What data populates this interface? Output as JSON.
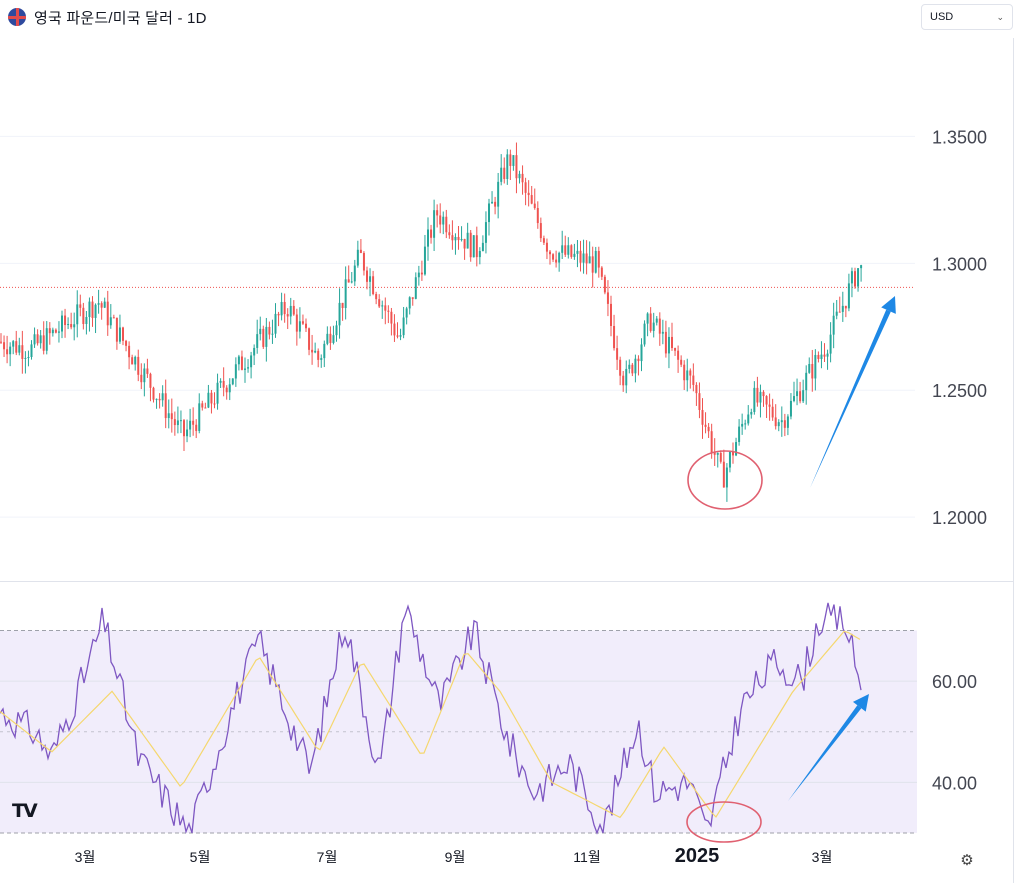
{
  "header": {
    "title": "영국 파운드/미국 달러 - 1D",
    "icon": "gbp-usd-flag-icon"
  },
  "currency_select": {
    "value": "USD"
  },
  "logo": {
    "text": "TV"
  },
  "colors": {
    "up": "#26a69a",
    "down": "#ef5350",
    "rsi_line": "#7e57c2",
    "rsi_ma": "#f5d76e",
    "rsi_band": "#f1edfb",
    "arrow": "#1e88e5",
    "circle": "#e06070"
  },
  "chart_data": [
    {
      "type": "candlestick",
      "title": "",
      "y_axis": {
        "ticks": [
          "1.3500",
          "1.3000",
          "1.2500",
          "1.2000"
        ],
        "range": [
          1.176,
          1.388
        ]
      },
      "x_axis": {
        "ticks": [
          "3월",
          "5월",
          "7월",
          "9월",
          "11월",
          "2025",
          "3월"
        ]
      },
      "current_price_line": 1.2905,
      "anchors": [
        {
          "x": "2024-01",
          "price": 1.272
        },
        {
          "x": "2024-02",
          "price": 1.266
        },
        {
          "x": "2024-03-08",
          "price": 1.285
        },
        {
          "x": "2024-04-22",
          "price": 1.232
        },
        {
          "x": "2024-06-12",
          "price": 1.283
        },
        {
          "x": "2024-06-27",
          "price": 1.262
        },
        {
          "x": "2024-07-17",
          "price": 1.303
        },
        {
          "x": "2024-08-05",
          "price": 1.27
        },
        {
          "x": "2024-08-23",
          "price": 1.32
        },
        {
          "x": "2024-09-11",
          "price": 1.305
        },
        {
          "x": "2024-09-26",
          "price": 1.342
        },
        {
          "x": "2024-10-15",
          "price": 1.305
        },
        {
          "x": "2024-11-06",
          "price": 1.3
        },
        {
          "x": "2024-11-22",
          "price": 1.253
        },
        {
          "x": "2024-12-06",
          "price": 1.278
        },
        {
          "x": "2024-12-30",
          "price": 1.252
        },
        {
          "x": "2025-01-13",
          "price": 1.215
        },
        {
          "x": "2025-01-27",
          "price": 1.247
        },
        {
          "x": "2025-02-10",
          "price": 1.238
        },
        {
          "x": "2025-03-03",
          "price": 1.268
        },
        {
          "x": "2025-03-18",
          "price": 1.298
        },
        {
          "x": "2025-03-31",
          "price": 1.292
        }
      ]
    },
    {
      "type": "line",
      "indicator": "RSI",
      "y_axis": {
        "ticks": [
          "60.00",
          "40.00"
        ],
        "range": [
          29,
          78
        ]
      },
      "bands": [
        30,
        50,
        70
      ],
      "series": [
        {
          "anchors": [
            [
              0,
              54
            ],
            [
              0.04,
              50
            ],
            [
              0.06,
              45
            ],
            [
              0.1,
              62
            ],
            [
              0.12,
              72
            ],
            [
              0.16,
              45
            ],
            [
              0.2,
              35
            ],
            [
              0.22,
              30
            ],
            [
              0.27,
              55
            ],
            [
              0.3,
              68
            ],
            [
              0.33,
              55
            ],
            [
              0.36,
              42
            ],
            [
              0.4,
              72
            ],
            [
              0.44,
              42
            ],
            [
              0.47,
              75
            ],
            [
              0.51,
              55
            ],
            [
              0.55,
              70
            ],
            [
              0.59,
              48
            ],
            [
              0.62,
              38
            ],
            [
              0.66,
              44
            ],
            [
              0.7,
              31
            ],
            [
              0.74,
              52
            ],
            [
              0.76,
              38
            ],
            [
              0.8,
              40
            ],
            [
              0.82,
              30
            ],
            [
              0.86,
              55
            ],
            [
              0.9,
              64
            ],
            [
              0.93,
              60
            ],
            [
              0.95,
              72
            ],
            [
              0.98,
              72
            ],
            [
              1.0,
              58
            ]
          ]
        },
        {
          "anchors": [
            [
              0,
              54
            ],
            [
              0.06,
              46
            ],
            [
              0.13,
              58
            ],
            [
              0.21,
              39
            ],
            [
              0.3,
              65
            ],
            [
              0.37,
              46
            ],
            [
              0.42,
              64
            ],
            [
              0.49,
              45
            ],
            [
              0.54,
              66
            ],
            [
              0.58,
              58
            ],
            [
              0.64,
              40
            ],
            [
              0.72,
              33
            ],
            [
              0.77,
              47
            ],
            [
              0.83,
              33
            ],
            [
              0.92,
              58
            ],
            [
              0.98,
              70
            ],
            [
              1.0,
              68
            ]
          ]
        }
      ]
    }
  ],
  "annotations": [
    {
      "kind": "circle",
      "note": "low"
    },
    {
      "kind": "arrow",
      "note": "up"
    }
  ]
}
